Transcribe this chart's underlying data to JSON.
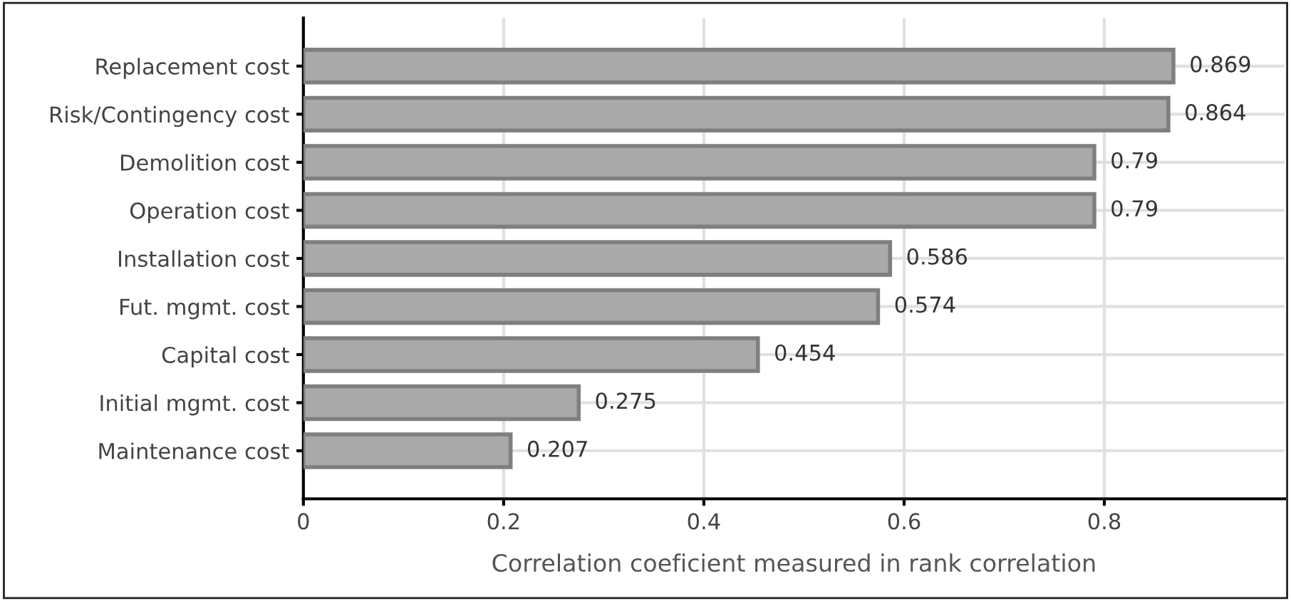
{
  "chart_data": {
    "type": "bar",
    "orientation": "horizontal",
    "xlabel": "Correlation coeficient measured in rank correlation",
    "categories": [
      "Replacement cost",
      "Risk/Contingency cost",
      "Demolition cost",
      "Operation cost",
      "Installation cost",
      "Fut. mgmt. cost",
      "Capital cost",
      "Initial mgmt. cost",
      "Maintenance cost"
    ],
    "values": [
      0.869,
      0.864,
      0.79,
      0.79,
      0.586,
      0.574,
      0.454,
      0.275,
      0.207
    ],
    "color": "#a9a9a9",
    "data_labels": true,
    "xlim": [
      0,
      0.98
    ],
    "xticks": [
      0,
      0.2,
      0.4,
      0.6,
      0.8
    ],
    "grid": true,
    "legend": false
  }
}
